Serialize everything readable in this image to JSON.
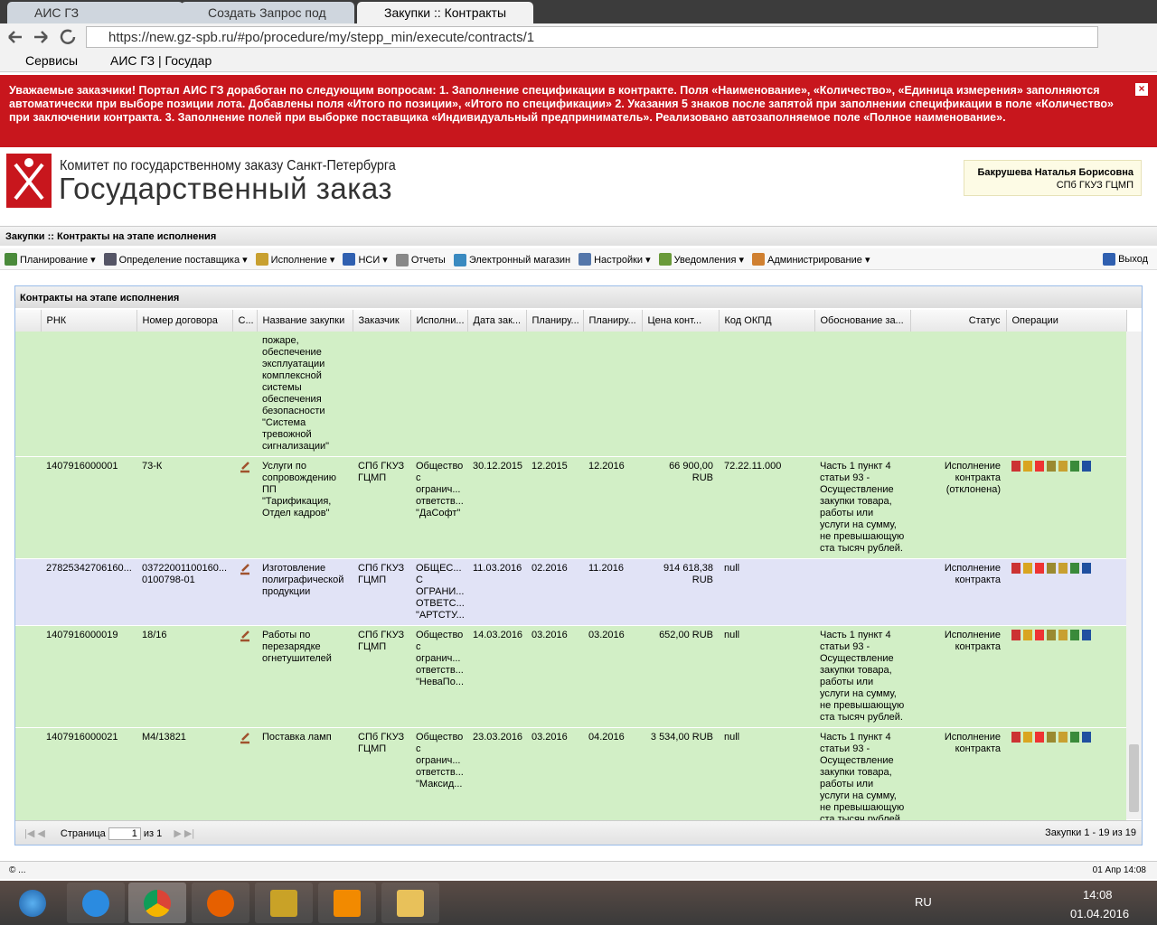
{
  "browser": {
    "tabs": [
      "АИС ГЗ",
      "Создать Запрос под",
      "Закупки :: Контракты"
    ],
    "url": "https://new.gz-spb.ru/#po/procedure/my/stepp_min/execute/contracts/1",
    "bookmarks": [
      "Сервисы",
      "АИС ГЗ | Государ"
    ]
  },
  "notice": "Уважаемые заказчики! Портал АИС ГЗ доработан по следующим вопросам: 1. Заполнение спецификации в контракте. Поля «Наименование», «Количество», «Единица измерения» заполняются автоматически при выборе позиции лота. Добавлены поля «Итого по позиции», «Итого по спецификации» 2. Указания 5 знаков после запятой при заполнении спецификации в поле «Количество» при заключении контракта. 3. Заполнение полей при выборке поставщика «Индивидуальный предприниматель». Реализовано автозаполняемое поле «Полное наименование».",
  "header": {
    "org": "Комитет по государственному заказу Санкт-Петербурга",
    "title": "Государственный заказ",
    "user_name": "Бакрушева Наталья Борисовна",
    "user_org": "СПб ГКУЗ ГЦМП"
  },
  "page_title": "Закупки :: Контракты на этапе исполнения",
  "menu": {
    "items": [
      "Планирование",
      "Определение поставщика",
      "Исполнение",
      "НСИ",
      "Отчеты",
      "Электронный магазин",
      "Настройки",
      "Уведомления",
      "Администрирование"
    ],
    "exit": "Выход"
  },
  "panel_title": "Контракты на этапе исполнения",
  "table": {
    "columns": [
      "РНК",
      "Номер договора",
      "С...",
      "Название закупки",
      "Заказчик",
      "Исполни...",
      "Дата зак...",
      "Планиру...",
      "Планиру...",
      "Цена конт...",
      "Код ОКПД",
      "Обоснование за...",
      "Статус",
      "Операции"
    ],
    "rows": [
      {
        "name": "пожаре, обеспечение эксплуатации комплексной системы обеспечения безопасности \"Система тревожной сигнализации\""
      },
      {
        "rnk": "1407916000001",
        "number": "73-К",
        "name": "Услуги по сопровождению ПП \"Тарификация, Отдел кадров\"",
        "customer": "СПб ГКУЗ ГЦМП",
        "supplier": "Общество с огранич... ответств... \"ДаСофт\"",
        "date": "30.12.2015",
        "plan_start": "12.2015",
        "plan_end": "12.2016",
        "price": "66 900,00 RUB",
        "okpd": "72.22.11.000",
        "basis": "Часть 1 пункт 4 статьи 93 - Осуществление закупки товара, работы или услуги на сумму, не превышающую ста тысяч рублей.",
        "status": "Исполнение контракта (отклонена)"
      },
      {
        "rnk": "27825342706160...",
        "number": "03722001100160... 0100798-01",
        "name": "Изготовление полиграфической продукции",
        "customer": "СПб ГКУЗ ГЦМП",
        "supplier": "ОБЩЕС... С ОГРАНИ... ОТВЕТС... \"АРТСТУ...",
        "date": "11.03.2016",
        "plan_start": "02.2016",
        "plan_end": "11.2016",
        "price": "914 618,38 RUB",
        "okpd": "null",
        "status": "Исполнение контракта"
      },
      {
        "rnk": "1407916000019",
        "number": "18/16",
        "name": "Работы по перезарядке огнетушителей",
        "customer": "СПб ГКУЗ ГЦМП",
        "supplier": "Общество с огранич... ответств... \"НеваПо...",
        "date": "14.03.2016",
        "plan_start": "03.2016",
        "plan_end": "03.2016",
        "price": "652,00 RUB",
        "okpd": "null",
        "basis": "Часть 1 пункт 4 статьи 93 - Осуществление закупки товара, работы или услуги на сумму, не превышающую ста тысяч рублей.",
        "status": "Исполнение контракта"
      },
      {
        "rnk": "1407916000021",
        "number": "М4/13821",
        "name": "Поставка ламп",
        "customer": "СПб ГКУЗ ГЦМП",
        "supplier": "Общество с огранич... ответств... \"Максид...",
        "date": "23.03.2016",
        "plan_start": "03.2016",
        "plan_end": "04.2016",
        "price": "3 534,00 RUB",
        "okpd": "null",
        "basis": "Часть 1 пункт 4 статьи 93 - Осуществление закупки товара, работы или услуги на сумму, не превышающую ста тысяч рублей.",
        "status": "Исполнение контракта"
      }
    ]
  },
  "pager": {
    "page_label": "Страница",
    "page": "1",
    "of": "из 1",
    "summary": "Закупки 1 - 19 из 19"
  },
  "status_bar": {
    "left": "© ...",
    "right": "01 Апр 14:08"
  },
  "taskbar": {
    "lang": "RU",
    "time": "14:08",
    "date": "01.04.2016"
  }
}
